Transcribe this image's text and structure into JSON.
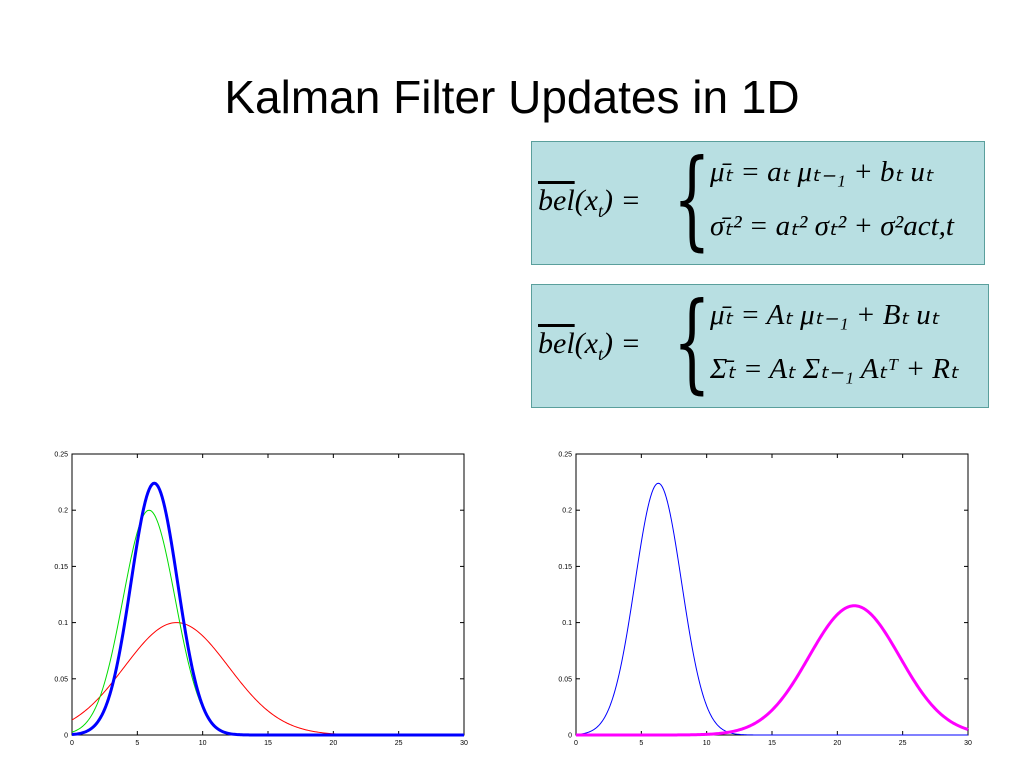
{
  "slide": {
    "title": "Kalman Filter Updates in 1D"
  },
  "equations": {
    "scalar": {
      "lhs_over": "bel",
      "lhs_rest": "(x",
      "lhs_sub": "t",
      "lhs_end": ") =",
      "line1": "μ̄ₜ = aₜ μₜ₋₁ + bₜ uₜ",
      "line2": "σ̄ₜ² = aₜ² σₜ² + σ²act,t"
    },
    "matrix": {
      "lhs_over": "bel",
      "lhs_rest": "(x",
      "lhs_sub": "t",
      "lhs_end": ") =",
      "line1": "μ̄ₜ = Aₜ μₜ₋₁ + Bₜ uₜ",
      "line2": "Σ̄ₜ = Aₜ Σₜ₋₁ Aₜᵀ + Rₜ"
    }
  },
  "chart_data": [
    {
      "type": "line",
      "xlim": [
        0,
        30
      ],
      "ylim": [
        0,
        0.25
      ],
      "xticks": [
        "0",
        "5",
        "10",
        "15",
        "20",
        "25",
        "30"
      ],
      "yticks": [
        "0",
        "0.05",
        "0.1",
        "0.15",
        "0.2",
        "0.25"
      ],
      "grid": false,
      "series": [
        {
          "kind": "gaussian",
          "mean": 8,
          "peak": 0.1,
          "color": "#ff0000",
          "width": 1
        },
        {
          "kind": "gaussian",
          "mean": 5.9,
          "peak": 0.2,
          "color": "#00dd00",
          "width": 1
        },
        {
          "kind": "gaussian",
          "mean": 6.3,
          "peak": 0.224,
          "color": "#0000ff",
          "width": 3
        }
      ]
    },
    {
      "type": "line",
      "xlim": [
        0,
        30
      ],
      "ylim": [
        0,
        0.25
      ],
      "xticks": [
        "0",
        "5",
        "10",
        "15",
        "20",
        "25",
        "30"
      ],
      "yticks": [
        "0",
        "0.05",
        "0.1",
        "0.15",
        "0.2",
        "0.25"
      ],
      "grid": false,
      "series": [
        {
          "kind": "gaussian",
          "mean": 6.3,
          "peak": 0.224,
          "color": "#0000ff",
          "width": 1
        },
        {
          "kind": "gaussian",
          "mean": 21.3,
          "peak": 0.115,
          "color": "#ff00ff",
          "width": 3
        }
      ]
    }
  ]
}
